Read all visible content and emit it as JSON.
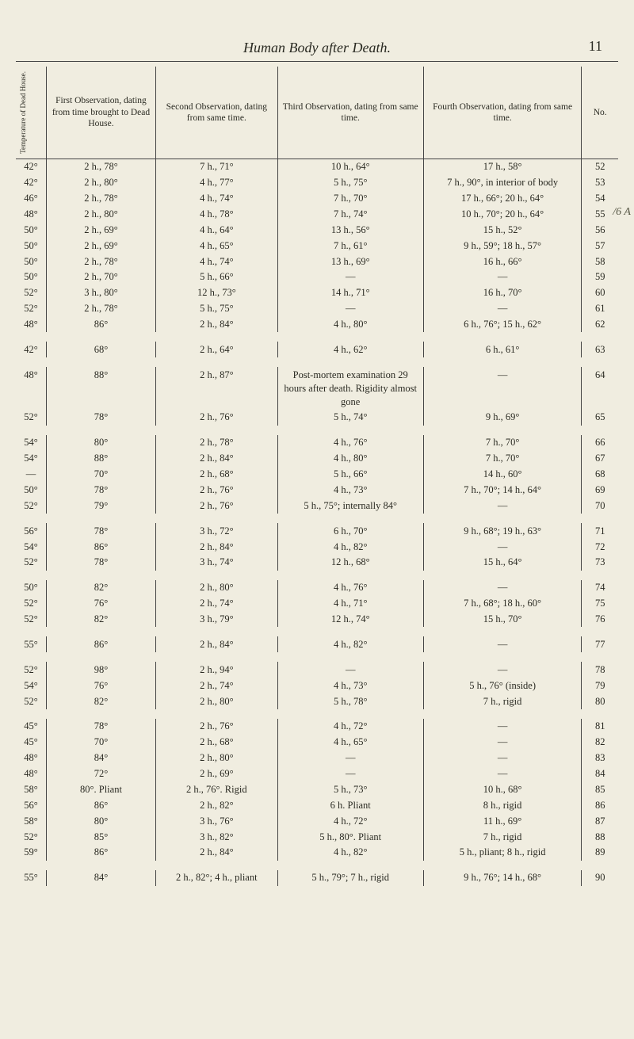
{
  "page": {
    "running_title": "Human Body after Death.",
    "number": "11",
    "marginal_note": "/6 A"
  },
  "headers": {
    "c0": "Temperature of Dead House.",
    "c1": "First Observation, dating from time brought to Dead House.",
    "c2": "Second Observation, dating from same time.",
    "c3": "Third Observation, dating from same time.",
    "c4": "Fourth Observation, dating from same time.",
    "c5": "No."
  },
  "rows": [
    {
      "c0": "42°",
      "c1": "2 h., 78°",
      "c2": "7 h., 71°",
      "c3": "10 h., 64°",
      "c4": "17 h., 58°",
      "c5": "52"
    },
    {
      "c0": "42°",
      "c1": "2 h., 80°",
      "c2": "4 h., 77°",
      "c3": "5 h., 75°",
      "c4": "7 h., 90°, in interior of body",
      "c5": "53"
    },
    {
      "c0": "46°",
      "c1": "2 h., 78°",
      "c2": "4 h., 74°",
      "c3": "7 h., 70°",
      "c4": "17 h., 66°; 20 h., 64°",
      "c5": "54"
    },
    {
      "c0": "48°",
      "c1": "2 h., 80°",
      "c2": "4 h., 78°",
      "c3": "7 h., 74°",
      "c4": "10 h., 70°; 20 h., 64°",
      "c5": "55"
    },
    {
      "c0": "50°",
      "c1": "2 h., 69°",
      "c2": "4 h., 64°",
      "c3": "13 h., 56°",
      "c4": "15 h., 52°",
      "c5": "56"
    },
    {
      "c0": "50°",
      "c1": "2 h., 69°",
      "c2": "4 h., 65°",
      "c3": "7 h., 61°",
      "c4": "9 h., 59°; 18 h., 57°",
      "c5": "57"
    },
    {
      "c0": "50°",
      "c1": "2 h., 78°",
      "c2": "4 h., 74°",
      "c3": "13 h., 69°",
      "c4": "16 h., 66°",
      "c5": "58"
    },
    {
      "c0": "50°",
      "c1": "2 h., 70°",
      "c2": "5 h., 66°",
      "c3": "—",
      "c4": "—",
      "c5": "59"
    },
    {
      "c0": "52°",
      "c1": "3 h., 80°",
      "c2": "12 h., 73°",
      "c3": "14 h., 71°",
      "c4": "16 h., 70°",
      "c5": "60"
    },
    {
      "c0": "52°",
      "c1": "2 h., 78°",
      "c2": "5 h., 75°",
      "c3": "—",
      "c4": "—",
      "c5": "61"
    },
    {
      "c0": "48°",
      "c1": "86°",
      "c2": "2 h., 84°",
      "c3": "4 h., 80°",
      "c4": "6 h., 76°; 15 h., 62°",
      "c5": "62"
    },
    {
      "spacer": true
    },
    {
      "c0": "42°",
      "c1": "68°",
      "c2": "2 h., 64°",
      "c3": "4 h., 62°",
      "c4": "6 h., 61°",
      "c5": "63"
    },
    {
      "spacer": true
    },
    {
      "c0": "48°",
      "c1": "88°",
      "c2": "2 h., 87°",
      "c3": "Post-mortem examination 29 hours after death. Rigidity almost gone",
      "c4": "—",
      "c5": "64"
    },
    {
      "c0": "52°",
      "c1": "78°",
      "c2": "2 h., 76°",
      "c3": "5 h., 74°",
      "c4": "9 h., 69°",
      "c5": "65"
    },
    {
      "spacer": true
    },
    {
      "c0": "54°",
      "c1": "80°",
      "c2": "2 h., 78°",
      "c3": "4 h., 76°",
      "c4": "7 h., 70°",
      "c5": "66"
    },
    {
      "c0": "54°",
      "c1": "88°",
      "c2": "2 h., 84°",
      "c3": "4 h., 80°",
      "c4": "7 h., 70°",
      "c5": "67"
    },
    {
      "c0": "—",
      "c1": "70°",
      "c2": "2 h., 68°",
      "c3": "5 h., 66°",
      "c4": "14 h., 60°",
      "c5": "68"
    },
    {
      "c0": "50°",
      "c1": "78°",
      "c2": "2 h., 76°",
      "c3": "4 h., 73°",
      "c4": "7 h., 70°; 14 h., 64°",
      "c5": "69"
    },
    {
      "c0": "52°",
      "c1": "79°",
      "c2": "2 h., 76°",
      "c3": "5 h., 75°; internally 84°",
      "c4": "—",
      "c5": "70"
    },
    {
      "spacer": true
    },
    {
      "c0": "56°",
      "c1": "78°",
      "c2": "3 h., 72°",
      "c3": "6 h., 70°",
      "c4": "9 h., 68°; 19 h., 63°",
      "c5": "71"
    },
    {
      "c0": "54°",
      "c1": "86°",
      "c2": "2 h., 84°",
      "c3": "4 h., 82°",
      "c4": "—",
      "c5": "72"
    },
    {
      "c0": "52°",
      "c1": "78°",
      "c2": "3 h., 74°",
      "c3": "12 h., 68°",
      "c4": "15 h., 64°",
      "c5": "73"
    },
    {
      "spacer": true
    },
    {
      "c0": "50°",
      "c1": "82°",
      "c2": "2 h., 80°",
      "c3": "4 h., 76°",
      "c4": "—",
      "c5": "74"
    },
    {
      "c0": "52°",
      "c1": "76°",
      "c2": "2 h., 74°",
      "c3": "4 h., 71°",
      "c4": "7 h., 68°; 18 h., 60°",
      "c5": "75"
    },
    {
      "c0": "52°",
      "c1": "82°",
      "c2": "3 h., 79°",
      "c3": "12 h., 74°",
      "c4": "15 h., 70°",
      "c5": "76"
    },
    {
      "spacer": true
    },
    {
      "c0": "55°",
      "c1": "86°",
      "c2": "2 h., 84°",
      "c3": "4 h., 82°",
      "c4": "—",
      "c5": "77"
    },
    {
      "spacer": true
    },
    {
      "c0": "52°",
      "c1": "98°",
      "c2": "2 h., 94°",
      "c3": "—",
      "c4": "—",
      "c5": "78"
    },
    {
      "c0": "54°",
      "c1": "76°",
      "c2": "2 h., 74°",
      "c3": "4 h., 73°",
      "c4": "5 h., 76° (inside)",
      "c5": "79"
    },
    {
      "c0": "52°",
      "c1": "82°",
      "c2": "2 h., 80°",
      "c3": "5 h., 78°",
      "c4": "7 h., rigid",
      "c5": "80"
    },
    {
      "spacer": true
    },
    {
      "c0": "45°",
      "c1": "78°",
      "c2": "2 h., 76°",
      "c3": "4 h., 72°",
      "c4": "—",
      "c5": "81"
    },
    {
      "c0": "45°",
      "c1": "70°",
      "c2": "2 h., 68°",
      "c3": "4 h., 65°",
      "c4": "—",
      "c5": "82"
    },
    {
      "c0": "48°",
      "c1": "84°",
      "c2": "2 h., 80°",
      "c3": "—",
      "c4": "—",
      "c5": "83"
    },
    {
      "c0": "48°",
      "c1": "72°",
      "c2": "2 h., 69°",
      "c3": "—",
      "c4": "—",
      "c5": "84"
    },
    {
      "c0": "58°",
      "c1": "80°. Pliant",
      "c2": "2 h., 76°. Rigid",
      "c3": "5 h., 73°",
      "c4": "10 h., 68°",
      "c5": "85"
    },
    {
      "c0": "56°",
      "c1": "86°",
      "c2": "2 h., 82°",
      "c3": "6 h. Pliant",
      "c4": "8 h., rigid",
      "c5": "86"
    },
    {
      "c0": "58°",
      "c1": "80°",
      "c2": "3 h., 76°",
      "c3": "4 h., 72°",
      "c4": "11 h., 69°",
      "c5": "87"
    },
    {
      "c0": "52°",
      "c1": "85°",
      "c2": "3 h., 82°",
      "c3": "5 h., 80°. Pliant",
      "c4": "7 h., rigid",
      "c5": "88"
    },
    {
      "c0": "59°",
      "c1": "86°",
      "c2": "2 h., 84°",
      "c3": "4 h., 82°",
      "c4": "5 h., pliant; 8 h., rigid",
      "c5": "89"
    },
    {
      "spacer": true
    },
    {
      "c0": "55°",
      "c1": "84°",
      "c2": "2 h., 82°; 4 h., pliant",
      "c3": "5 h., 79°; 7 h., rigid",
      "c4": "9 h., 76°; 14 h., 68°",
      "c5": "90"
    }
  ]
}
